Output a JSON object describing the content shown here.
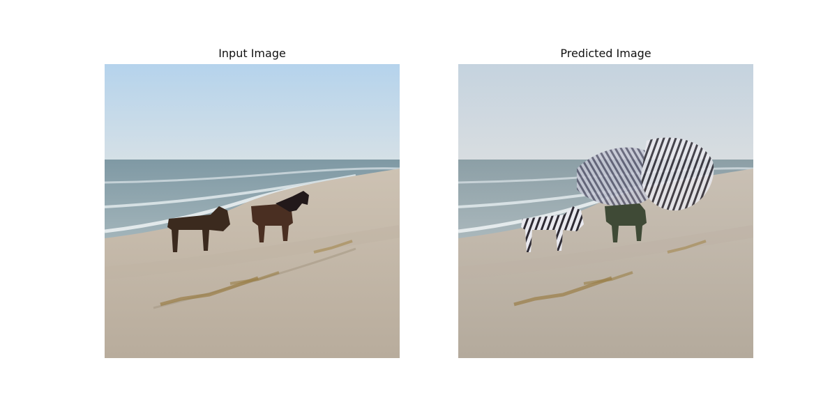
{
  "figure": {
    "panels": [
      {
        "title": "Input Image",
        "image": "beach-horses-photo"
      },
      {
        "title": "Predicted Image",
        "image": "beach-zebra-translated-photo"
      }
    ]
  }
}
